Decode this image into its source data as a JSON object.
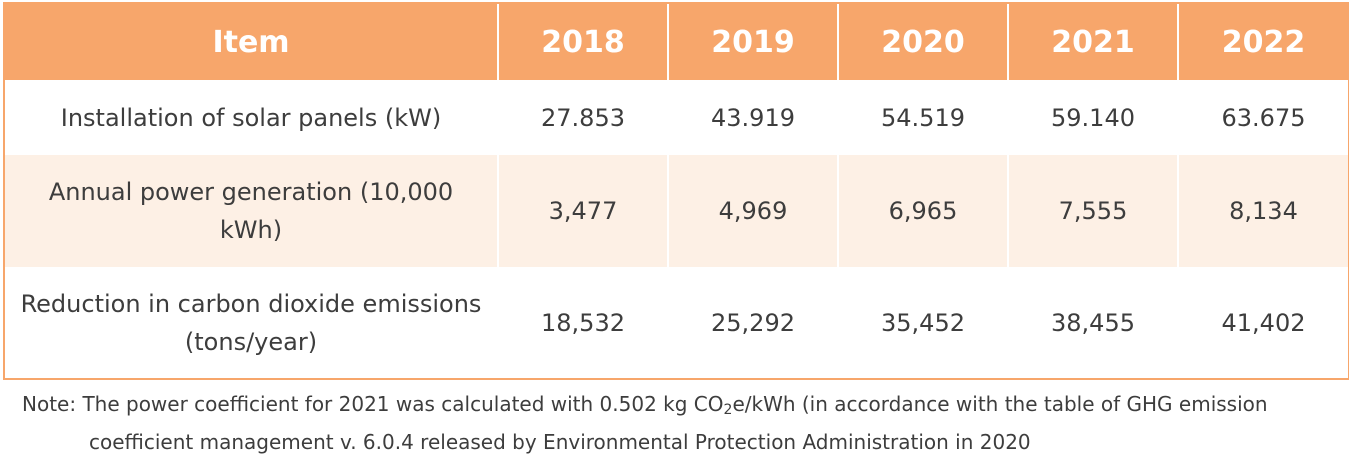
{
  "table": {
    "headers": [
      "Item",
      "2018",
      "2019",
      "2020",
      "2021",
      "2022"
    ],
    "rows": [
      {
        "label": "Installation of solar panels (kW)",
        "values": [
          "27.853",
          "43.919",
          "54.519",
          "59.140",
          "63.675"
        ]
      },
      {
        "label": "Annual power generation (10,000 kWh)",
        "values": [
          "3,477",
          "4,969",
          "6,965",
          "7,555",
          "8,134"
        ]
      },
      {
        "label": "Reduction in carbon dioxide emissions (tons/year)",
        "values": [
          "18,532",
          "25,292",
          "35,452",
          "38,455",
          "41,402"
        ]
      }
    ]
  },
  "note": {
    "line1_before_sub": "Note: The power coefficient for 2021 was calculated with 0.502 kg CO",
    "subscript": "2",
    "line1_after_sub": "e/kWh (in accordance with the table of GHG emission",
    "line2": "coefficient management v. 6.0.4 released by Environmental Protection Administration in 2020"
  },
  "colors": {
    "header_bg": "#f7a66b",
    "header_text": "#ffffff",
    "band_bg": "#fdf0e5",
    "text": "#3d3d3d"
  }
}
